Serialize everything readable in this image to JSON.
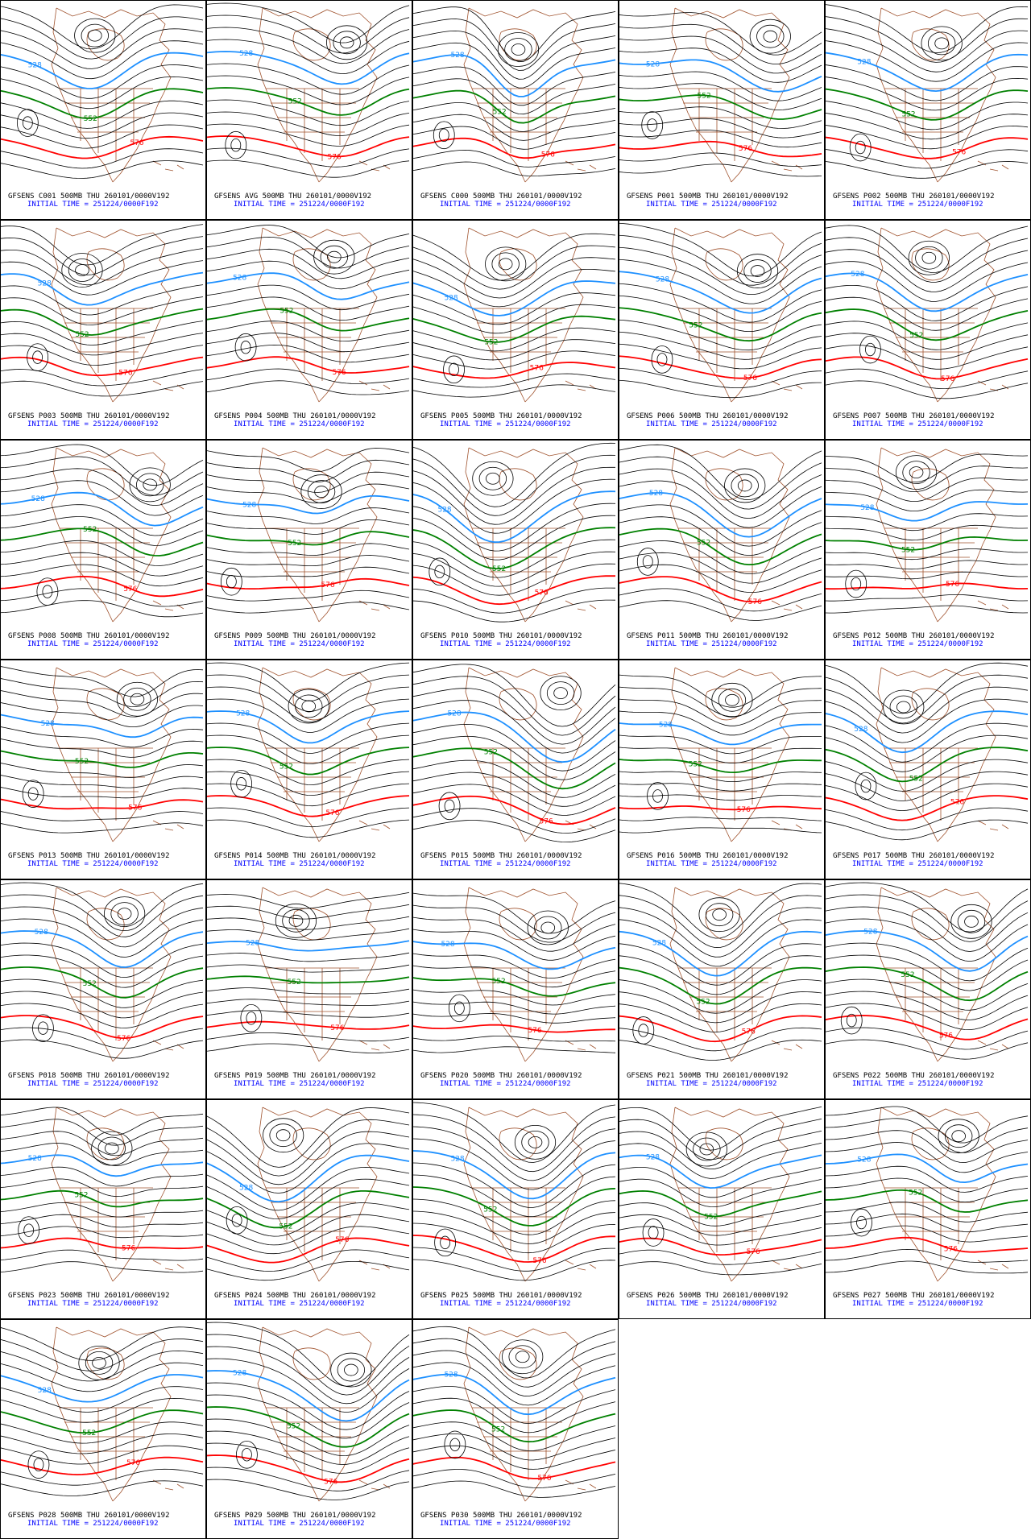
{
  "panels": [
    {
      "title": "GFSENS C001 500MB THU 260101/0000V192",
      "subtitle": "INITIAL TIME = 251224/0000F192",
      "contour_labels": [
        "528",
        "552",
        "576"
      ]
    },
    {
      "title": "GFSENS AVG 500MB THU 260101/0000V192",
      "subtitle": "INITIAL TIME = 251224/0000F192",
      "contour_labels": [
        "528",
        "552",
        "576"
      ]
    },
    {
      "title": "GFSENS C000 500MB THU 260101/0000V192",
      "subtitle": "INITIAL TIME = 251224/0000F192",
      "contour_labels": [
        "528",
        "552",
        "576"
      ]
    },
    {
      "title": "GFSENS P001 500MB THU 260101/0000V192",
      "subtitle": "INITIAL TIME = 251224/0000F192",
      "contour_labels": [
        "528",
        "552",
        "576"
      ]
    },
    {
      "title": "GFSENS P002 500MB THU 260101/0000V192",
      "subtitle": "INITIAL TIME = 251224/0000F192",
      "contour_labels": [
        "528",
        "552",
        "576"
      ]
    },
    {
      "title": "GFSENS P003 500MB THU 260101/0000V192",
      "subtitle": "INITIAL TIME = 251224/0000F192",
      "contour_labels": [
        "528",
        "552",
        "576"
      ]
    },
    {
      "title": "GFSENS P004 500MB THU 260101/0000V192",
      "subtitle": "INITIAL TIME = 251224/0000F192",
      "contour_labels": [
        "528",
        "552",
        "576"
      ]
    },
    {
      "title": "GFSENS P005 500MB THU 260101/0000V192",
      "subtitle": "INITIAL TIME = 251224/0000F192",
      "contour_labels": [
        "528",
        "552",
        "576"
      ]
    },
    {
      "title": "GFSENS P006 500MB THU 260101/0000V192",
      "subtitle": "INITIAL TIME = 251224/0000F192",
      "contour_labels": [
        "528",
        "552",
        "576"
      ]
    },
    {
      "title": "GFSENS P007 500MB THU 260101/0000V192",
      "subtitle": "INITIAL TIME = 251224/0000F192",
      "contour_labels": [
        "528",
        "552",
        "576"
      ]
    },
    {
      "title": "GFSENS P008 500MB THU 260101/0000V192",
      "subtitle": "INITIAL TIME = 251224/0000F192",
      "contour_labels": [
        "528",
        "552",
        "576"
      ]
    },
    {
      "title": "GFSENS P009 500MB THU 260101/0000V192",
      "subtitle": "INITIAL TIME = 251224/0000F192",
      "contour_labels": [
        "528",
        "552",
        "576"
      ]
    },
    {
      "title": "GFSENS P010 500MB THU 260101/0000V192",
      "subtitle": "INITIAL TIME = 251224/0000F192",
      "contour_labels": [
        "528",
        "552",
        "576"
      ]
    },
    {
      "title": "GFSENS P011 500MB THU 260101/0000V192",
      "subtitle": "INITIAL TIME = 251224/0000F192",
      "contour_labels": [
        "528",
        "552",
        "576"
      ]
    },
    {
      "title": "GFSENS P012 500MB THU 260101/0000V192",
      "subtitle": "INITIAL TIME = 251224/0000F192",
      "contour_labels": [
        "528",
        "552",
        "576"
      ]
    },
    {
      "title": "GFSENS P013 500MB THU 260101/0000V192",
      "subtitle": "INITIAL TIME = 251224/0000F192",
      "contour_labels": [
        "528",
        "552",
        "576"
      ]
    },
    {
      "title": "GFSENS P014 500MB THU 260101/0000V192",
      "subtitle": "INITIAL TIME = 251224/0000F192",
      "contour_labels": [
        "528",
        "552",
        "576"
      ]
    },
    {
      "title": "GFSENS P015 500MB THU 260101/0000V192",
      "subtitle": "INITIAL TIME = 251224/0000F192",
      "contour_labels": [
        "528",
        "552",
        "576"
      ]
    },
    {
      "title": "GFSENS P016 500MB THU 260101/0000V192",
      "subtitle": "INITIAL TIME = 251224/0000F192",
      "contour_labels": [
        "528",
        "552",
        "576"
      ]
    },
    {
      "title": "GFSENS P017 500MB THU 260101/0000V192",
      "subtitle": "INITIAL TIME = 251224/0000F192",
      "contour_labels": [
        "528",
        "552",
        "576"
      ]
    },
    {
      "title": "GFSENS P018 500MB THU 260101/0000V192",
      "subtitle": "INITIAL TIME = 251224/0000F192",
      "contour_labels": [
        "528",
        "552",
        "576"
      ]
    },
    {
      "title": "GFSENS P019 500MB THU 260101/0000V192",
      "subtitle": "INITIAL TIME = 251224/0000F192",
      "contour_labels": [
        "528",
        "552",
        "576"
      ]
    },
    {
      "title": "GFSENS P020 500MB THU 260101/0000V192",
      "subtitle": "INITIAL TIME = 251224/0000F192",
      "contour_labels": [
        "528",
        "552",
        "576"
      ]
    },
    {
      "title": "GFSENS P021 500MB THU 260101/0000V192",
      "subtitle": "INITIAL TIME = 251224/0000F192",
      "contour_labels": [
        "528",
        "552",
        "576"
      ]
    },
    {
      "title": "GFSENS P022 500MB THU 260101/0000V192",
      "subtitle": "INITIAL TIME = 251224/0000F192",
      "contour_labels": [
        "528",
        "552",
        "576"
      ]
    },
    {
      "title": "GFSENS P023 500MB THU 260101/0000V192",
      "subtitle": "INITIAL TIME = 251224/0000F192",
      "contour_labels": [
        "528",
        "552",
        "576"
      ]
    },
    {
      "title": "GFSENS P024 500MB THU 260101/0000V192",
      "subtitle": "INITIAL TIME = 251224/0000F192",
      "contour_labels": [
        "528",
        "552",
        "576"
      ]
    },
    {
      "title": "GFSENS P025 500MB THU 260101/0000V192",
      "subtitle": "INITIAL TIME = 251224/0000F192",
      "contour_labels": [
        "528",
        "552",
        "576"
      ]
    },
    {
      "title": "GFSENS P026 500MB THU 260101/0000V192",
      "subtitle": "INITIAL TIME = 251224/0000F192",
      "contour_labels": [
        "528",
        "552",
        "576"
      ]
    },
    {
      "title": "GFSENS P027 500MB THU 260101/0000V192",
      "subtitle": "INITIAL TIME = 251224/0000F192",
      "contour_labels": [
        "528",
        "552",
        "576"
      ]
    },
    {
      "title": "GFSENS P028 500MB THU 260101/0000V192",
      "subtitle": "INITIAL TIME = 251224/0000F192",
      "contour_labels": [
        "528",
        "552",
        "576"
      ]
    },
    {
      "title": "GFSENS P029 500MB THU 260101/0000V192",
      "subtitle": "INITIAL TIME = 251224/0000F192",
      "contour_labels": [
        "528",
        "552",
        "576"
      ]
    },
    {
      "title": "GFSENS P030 500MB THU 260101/0000V192",
      "subtitle": "INITIAL TIME = 251224/0000F192",
      "contour_labels": [
        "528",
        "552",
        "576"
      ]
    }
  ]
}
